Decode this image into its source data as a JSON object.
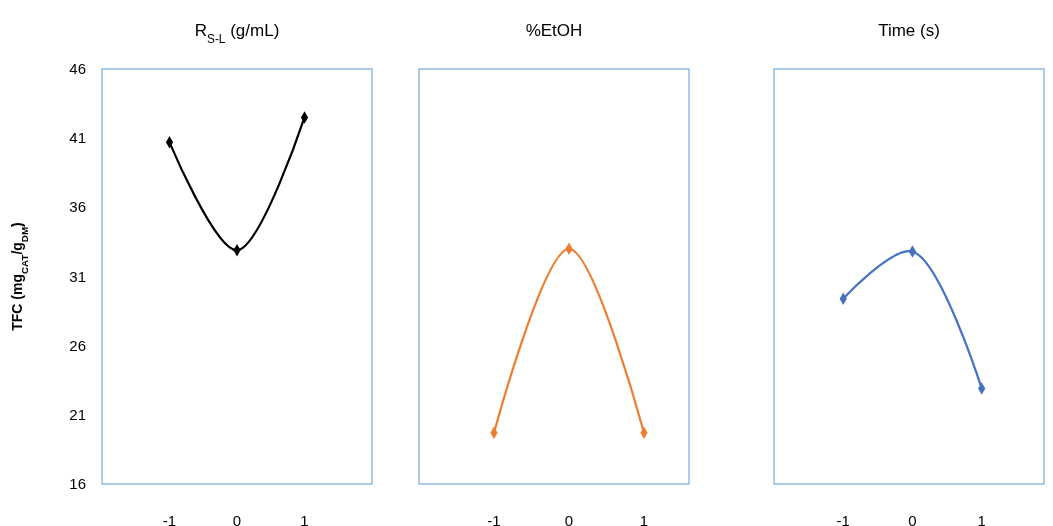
{
  "chart_data": [
    {
      "type": "line",
      "title": "R$_{S-L}$ (g/mL)",
      "ylabel": "TFC (mg$_{CAT}$/g$_{DM}$)",
      "x": [
        -1,
        0,
        1
      ],
      "xlim": [
        -2,
        2
      ],
      "xticks": [
        -1,
        0,
        1
      ],
      "ylim": [
        16,
        46
      ],
      "yticks": [
        16,
        21,
        26,
        31,
        36,
        41,
        46
      ],
      "marker": "diamond",
      "series": [
        {
          "color": "#000000",
          "values": [
            40.7,
            32.9,
            42.5
          ]
        }
      ]
    },
    {
      "type": "line",
      "title": "%EtOH",
      "x": [
        -1,
        0,
        1
      ],
      "xlim": [
        -2,
        1.6
      ],
      "xticks": [
        -1,
        0,
        1
      ],
      "ylim": [
        16,
        46
      ],
      "tick_labels": "x",
      "marker": "diamond",
      "series": [
        {
          "color": "#ed7d31",
          "values": [
            19.7,
            33.0,
            19.7
          ]
        }
      ]
    },
    {
      "type": "line",
      "title": "Time (s)",
      "x": [
        -1,
        0,
        1
      ],
      "xlim": [
        -2,
        1.9
      ],
      "xticks": [
        -1,
        0,
        1
      ],
      "ylim": [
        16,
        46
      ],
      "tick_labels": "x",
      "marker": "diamond",
      "series": [
        {
          "color": "#4472c4",
          "values": [
            29.4,
            32.8,
            22.9
          ]
        }
      ]
    }
  ]
}
